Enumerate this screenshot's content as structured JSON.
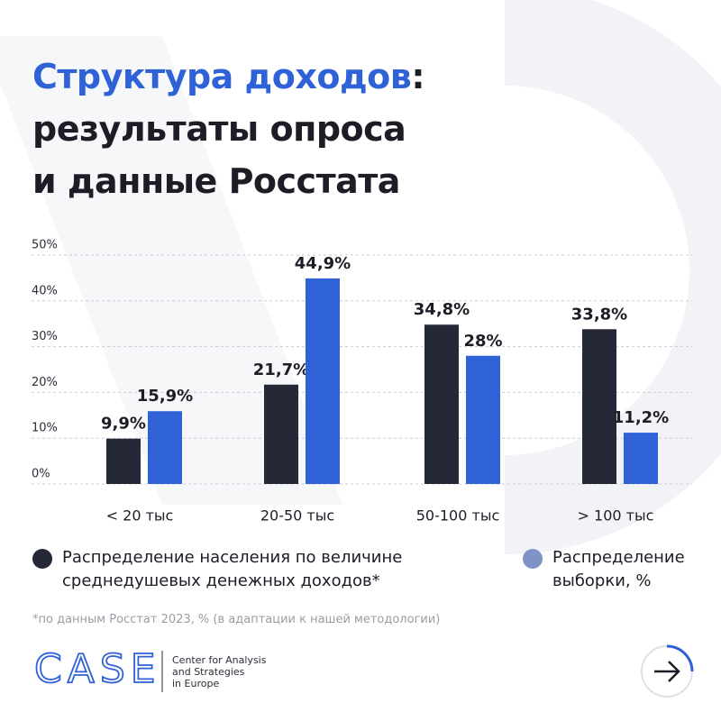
{
  "chart_data": {
    "type": "bar",
    "title": [
      [
        "Структура доходов",
        ":"
      ],
      [
        "результаты опроса"
      ],
      [
        "и данные Росстата"
      ]
    ],
    "categories": [
      "< 20 тыс",
      "20-50 тыс",
      "50-100 тыс",
      "> 100 тыс"
    ],
    "series": [
      {
        "name": "Распределение населения по величине среднедушевых денежных доходов*",
        "color": "#252836",
        "values": [
          9.9,
          21.7,
          34.8,
          33.8
        ],
        "value_labels": [
          "9,9%",
          "21,7%",
          "34,8%",
          "33,8%"
        ]
      },
      {
        "name": "Распределение выборки, %",
        "color": "#2f62d6",
        "legend_color": "#7f93c6",
        "values": [
          15.9,
          44.9,
          28,
          11.2
        ],
        "value_labels": [
          "15,9%",
          "44,9%",
          "28%",
          "11,2%"
        ]
      }
    ],
    "ylim": [
      0,
      50
    ],
    "yticks": [
      {
        "value": 0,
        "label": "0%"
      },
      {
        "value": 10,
        "label": "10%"
      },
      {
        "value": 20,
        "label": "20%"
      },
      {
        "value": 30,
        "label": "30%"
      },
      {
        "value": 40,
        "label": "40%"
      },
      {
        "value": 50,
        "label": "50%"
      }
    ],
    "grid": true
  },
  "footnote": "*по данным Росстат 2023, % (в адаптации к нашей методологии)",
  "logo": {
    "name": "CASE",
    "subtitle": [
      "Center for Analysis",
      "and Strategies",
      "in Europe"
    ]
  }
}
